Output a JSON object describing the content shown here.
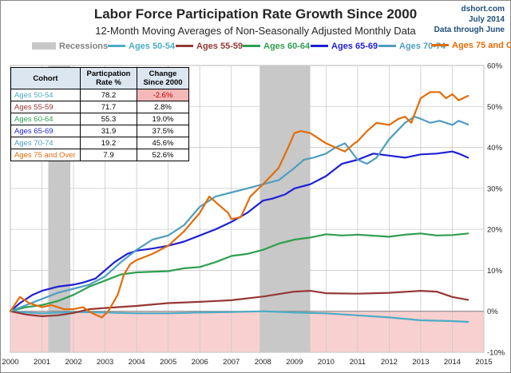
{
  "header": {
    "title": "Labor Force Participation Rate Growth Since 2000",
    "subtitle": "12-Month Moving Averages of Non-Seasonally Adjusted Monthly Data",
    "site": "dshort.com",
    "date": "July 2014",
    "through": "Data through June"
  },
  "legend": {
    "recessions": "Recessions",
    "items": [
      "Ages 50-54",
      "Ages 55-59",
      "Ages 60-64",
      "Ages 65-69",
      "Ages 70-74",
      "Ages 75 and Over"
    ]
  },
  "colors": {
    "Ages 50-54": "#4bacc6",
    "Ages 55-59": "#953735",
    "Ages 60-64": "#2f9e4f",
    "Ages 65-69": "#1f1fd6",
    "Ages 70-74": "#4f9ebf",
    "Ages 75 and Over": "#e36c0a",
    "recession": "#c8c8c8",
    "negative_zone": "#f9d0d0",
    "negative_text": "#c00000"
  },
  "table": {
    "headers": [
      "Cohort",
      "Particpation Rate %",
      "Change Since 2000"
    ],
    "rows": [
      {
        "cohort": "Ages 50-54",
        "rate": "78.2",
        "change": "-2.6%"
      },
      {
        "cohort": "Ages 55-59",
        "rate": "71.7",
        "change": "2.8%"
      },
      {
        "cohort": "Ages 60-64",
        "rate": "55.3",
        "change": "19.0%"
      },
      {
        "cohort": "Ages 65-69",
        "rate": "31.9",
        "change": "37.5%"
      },
      {
        "cohort": "Ages 70-74",
        "rate": "19.2",
        "change": "45.6%"
      },
      {
        "cohort": "Ages 75 and Over",
        "rate": "7.9",
        "change": "52.6%"
      }
    ]
  },
  "chart_data": {
    "type": "line",
    "title": "Labor Force Participation Rate Growth Since 2000",
    "subtitle": "12-Month Moving Averages of Non-Seasonally Adjusted Monthly Data",
    "xlim": [
      2000,
      2015
    ],
    "ylim": [
      -10,
      60
    ],
    "x_ticks": [
      "2000",
      "2001",
      "2002",
      "2003",
      "2004",
      "2005",
      "2006",
      "2007",
      "2008",
      "2009",
      "2010",
      "2011",
      "2012",
      "2013",
      "2014",
      "2015"
    ],
    "y_ticks": [
      "-10%",
      "0%",
      "10%",
      "20%",
      "30%",
      "40%",
      "50%",
      "60%"
    ],
    "y_tick_values": [
      -10,
      0,
      10,
      20,
      30,
      40,
      50,
      60
    ],
    "grid": true,
    "legend_position": "top",
    "recessions": [
      [
        2001.2,
        2001.9
      ],
      [
        2007.9,
        2009.5
      ]
    ],
    "series": [
      {
        "name": "Ages 50-54",
        "points": [
          [
            2000,
            0
          ],
          [
            2000.5,
            -0.3
          ],
          [
            2001,
            -0.5
          ],
          [
            2002,
            -0.2
          ],
          [
            2003,
            -0.3
          ],
          [
            2004,
            -0.5
          ],
          [
            2005,
            -0.5
          ],
          [
            2006,
            -0.3
          ],
          [
            2007,
            -0.2
          ],
          [
            2008,
            0
          ],
          [
            2009,
            -0.3
          ],
          [
            2010,
            -0.5
          ],
          [
            2011,
            -1
          ],
          [
            2012,
            -1.5
          ],
          [
            2013,
            -2.2
          ],
          [
            2014,
            -2.4
          ],
          [
            2014.5,
            -2.6
          ]
        ]
      },
      {
        "name": "Ages 55-59",
        "points": [
          [
            2000,
            0
          ],
          [
            2000.5,
            -0.8
          ],
          [
            2001,
            -1.2
          ],
          [
            2001.5,
            -1
          ],
          [
            2002,
            -0.4
          ],
          [
            2002.5,
            0.5
          ],
          [
            2003,
            0.8
          ],
          [
            2004,
            1.3
          ],
          [
            2005,
            2
          ],
          [
            2006,
            2.3
          ],
          [
            2007,
            2.7
          ],
          [
            2008,
            3.6
          ],
          [
            2009,
            4.8
          ],
          [
            2009.5,
            5
          ],
          [
            2010,
            4.4
          ],
          [
            2011,
            4.3
          ],
          [
            2012,
            4.5
          ],
          [
            2013,
            5
          ],
          [
            2013.5,
            4.8
          ],
          [
            2014,
            3.5
          ],
          [
            2014.5,
            2.8
          ]
        ]
      },
      {
        "name": "Ages 60-64",
        "points": [
          [
            2000,
            0
          ],
          [
            2000.5,
            1
          ],
          [
            2001,
            1.5
          ],
          [
            2001.5,
            2.5
          ],
          [
            2002,
            4
          ],
          [
            2002.5,
            6
          ],
          [
            2003,
            7.5
          ],
          [
            2003.5,
            9
          ],
          [
            2004,
            9.5
          ],
          [
            2005,
            9.8
          ],
          [
            2005.5,
            10.5
          ],
          [
            2006,
            10.8
          ],
          [
            2006.5,
            12
          ],
          [
            2007,
            13.5
          ],
          [
            2007.5,
            14
          ],
          [
            2008,
            15
          ],
          [
            2008.5,
            16.5
          ],
          [
            2009,
            17.5
          ],
          [
            2009.5,
            18
          ],
          [
            2010,
            18.8
          ],
          [
            2010.5,
            18.5
          ],
          [
            2011,
            18.7
          ],
          [
            2012,
            18.2
          ],
          [
            2012.5,
            18.7
          ],
          [
            2013,
            19
          ],
          [
            2013.5,
            18.5
          ],
          [
            2014,
            18.6
          ],
          [
            2014.5,
            19
          ]
        ]
      },
      {
        "name": "Ages 65-69",
        "points": [
          [
            2000,
            0
          ],
          [
            2000.3,
            2
          ],
          [
            2000.7,
            4
          ],
          [
            2001,
            5
          ],
          [
            2001.5,
            6
          ],
          [
            2002,
            6.5
          ],
          [
            2002.3,
            7
          ],
          [
            2002.7,
            8
          ],
          [
            2003,
            10
          ],
          [
            2003.3,
            12
          ],
          [
            2003.7,
            14
          ],
          [
            2004,
            14.8
          ],
          [
            2004.5,
            15.3
          ],
          [
            2005,
            16
          ],
          [
            2005.5,
            17
          ],
          [
            2006,
            18.5
          ],
          [
            2006.5,
            20
          ],
          [
            2007,
            21.8
          ],
          [
            2007.5,
            24
          ],
          [
            2008,
            27
          ],
          [
            2008.3,
            27.5
          ],
          [
            2008.7,
            28.5
          ],
          [
            2009,
            30
          ],
          [
            2009.5,
            31
          ],
          [
            2010,
            33
          ],
          [
            2010.5,
            36
          ],
          [
            2011,
            37
          ],
          [
            2011.5,
            38.5
          ],
          [
            2012,
            38
          ],
          [
            2012.5,
            37.5
          ],
          [
            2013,
            38.3
          ],
          [
            2013.5,
            38.5
          ],
          [
            2014,
            39
          ],
          [
            2014.2,
            38.5
          ],
          [
            2014.5,
            37.5
          ]
        ]
      },
      {
        "name": "Ages 70-74",
        "points": [
          [
            2000,
            0
          ],
          [
            2000.5,
            1.5
          ],
          [
            2001,
            3
          ],
          [
            2001.5,
            4.5
          ],
          [
            2002,
            5.5
          ],
          [
            2002.5,
            6.5
          ],
          [
            2003,
            8.5
          ],
          [
            2003.5,
            12
          ],
          [
            2004,
            15
          ],
          [
            2004.5,
            17.5
          ],
          [
            2005,
            18.5
          ],
          [
            2005.5,
            21
          ],
          [
            2006,
            25.5
          ],
          [
            2006.5,
            28
          ],
          [
            2007,
            29
          ],
          [
            2007.5,
            30
          ],
          [
            2008,
            31
          ],
          [
            2008.5,
            32
          ],
          [
            2009,
            35
          ],
          [
            2009.3,
            37
          ],
          [
            2009.6,
            37.5
          ],
          [
            2010,
            38.5
          ],
          [
            2010.3,
            40
          ],
          [
            2010.6,
            41
          ],
          [
            2011,
            37
          ],
          [
            2011.3,
            36
          ],
          [
            2011.6,
            37.5
          ],
          [
            2012,
            42
          ],
          [
            2012.5,
            46
          ],
          [
            2012.8,
            47.5
          ],
          [
            2013,
            47
          ],
          [
            2013.3,
            46
          ],
          [
            2013.6,
            46.5
          ],
          [
            2014,
            45.5
          ],
          [
            2014.2,
            46.5
          ],
          [
            2014.5,
            45.6
          ]
        ]
      },
      {
        "name": "Ages 75 and Over",
        "points": [
          [
            2000,
            0
          ],
          [
            2000.3,
            3.5
          ],
          [
            2000.6,
            2
          ],
          [
            2001,
            1
          ],
          [
            2001.3,
            1.5
          ],
          [
            2001.7,
            0.5
          ],
          [
            2002,
            0.5
          ],
          [
            2002.3,
            1
          ],
          [
            2002.6,
            -0.5
          ],
          [
            2002.9,
            -1.5
          ],
          [
            2003.1,
            0
          ],
          [
            2003.4,
            4
          ],
          [
            2003.6,
            9
          ],
          [
            2003.8,
            11.5
          ],
          [
            2004,
            12.5
          ],
          [
            2004.5,
            14
          ],
          [
            2005,
            16
          ],
          [
            2005.5,
            19.5
          ],
          [
            2006,
            24
          ],
          [
            2006.3,
            28
          ],
          [
            2006.6,
            26
          ],
          [
            2006.9,
            24
          ],
          [
            2007,
            22.5
          ],
          [
            2007.3,
            23
          ],
          [
            2007.6,
            28
          ],
          [
            2008,
            31
          ],
          [
            2008.5,
            35
          ],
          [
            2008.8,
            40
          ],
          [
            2009,
            43.5
          ],
          [
            2009.2,
            44
          ],
          [
            2009.5,
            43.5
          ],
          [
            2009.8,
            42
          ],
          [
            2010,
            41
          ],
          [
            2010.3,
            40
          ],
          [
            2010.6,
            39
          ],
          [
            2010.9,
            41
          ],
          [
            2011,
            41.5
          ],
          [
            2011.3,
            44
          ],
          [
            2011.6,
            46
          ],
          [
            2012,
            45.5
          ],
          [
            2012.3,
            47
          ],
          [
            2012.5,
            47.5
          ],
          [
            2012.7,
            46
          ],
          [
            2013,
            52
          ],
          [
            2013.3,
            53.5
          ],
          [
            2013.6,
            53.5
          ],
          [
            2013.8,
            52
          ],
          [
            2014,
            53
          ],
          [
            2014.2,
            51.5
          ],
          [
            2014.5,
            52.6
          ]
        ]
      }
    ]
  }
}
